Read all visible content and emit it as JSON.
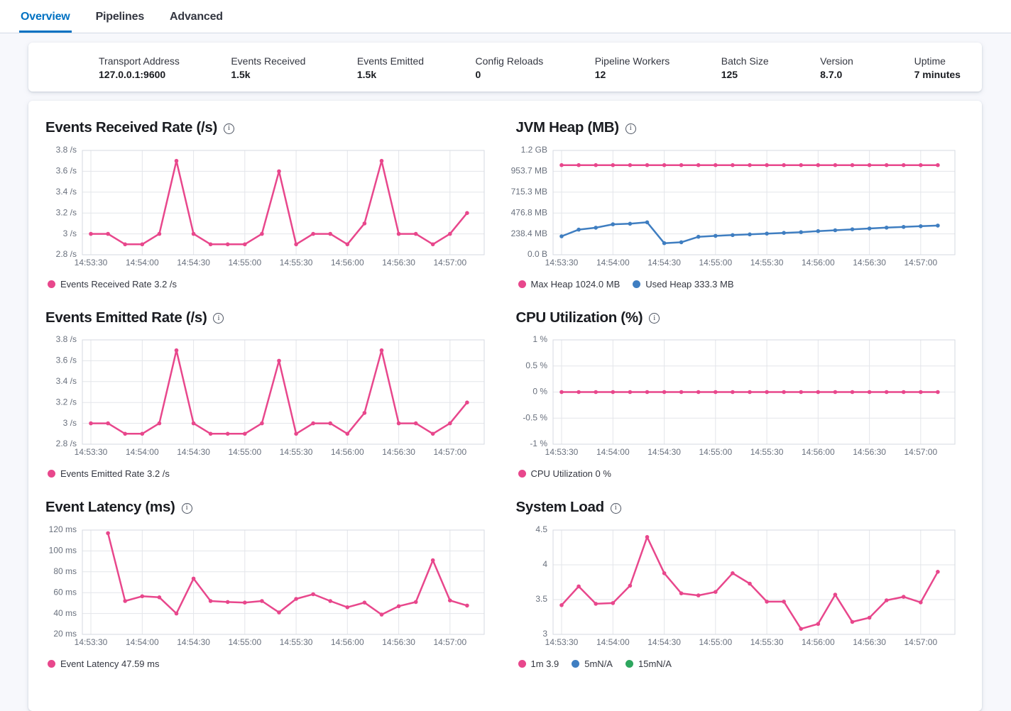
{
  "colors": {
    "pink": "#E8478C",
    "blue": "#3F7EC1",
    "green": "#2DA65E",
    "tab_active": "#0071C2",
    "axis_text": "#69707D",
    "grid": "#E3E5EA",
    "plot_border": "#D6D9E0"
  },
  "icons": {
    "info_glyph": "i"
  },
  "tabs": [
    {
      "label": "Overview",
      "active": true
    },
    {
      "label": "Pipelines",
      "active": false
    },
    {
      "label": "Advanced",
      "active": false
    }
  ],
  "stats": [
    {
      "label": "Transport Address",
      "value": "127.0.0.1:9600"
    },
    {
      "label": "Events Received",
      "value": "1.5k"
    },
    {
      "label": "Events Emitted",
      "value": "1.5k"
    },
    {
      "label": "Config Reloads",
      "value": "0"
    },
    {
      "label": "Pipeline Workers",
      "value": "12"
    },
    {
      "label": "Batch Size",
      "value": "125"
    },
    {
      "label": "Version",
      "value": "8.7.0"
    },
    {
      "label": "Uptime",
      "value": "7 minutes"
    }
  ],
  "x_axis": {
    "start_time": "14:53:30",
    "tick_labels": [
      "14:53:30",
      "14:54:00",
      "14:54:30",
      "14:55:00",
      "14:55:30",
      "14:56:00",
      "14:56:30",
      "14:57:00"
    ],
    "tick_offsets_s": [
      0,
      30,
      60,
      90,
      120,
      150,
      180,
      210
    ],
    "domain_s": [
      -5,
      230
    ]
  },
  "chart_data": [
    {
      "type": "line",
      "title": "Events Received Rate (/s)",
      "ylabel": "",
      "ylim": [
        2.8,
        3.8
      ],
      "y_ticks": [
        {
          "v": 2.8,
          "label": "2.8 /s"
        },
        {
          "v": 3,
          "label": "3 /s"
        },
        {
          "v": 3.2,
          "label": "3.2 /s"
        },
        {
          "v": 3.4,
          "label": "3.4 /s"
        },
        {
          "v": 3.6,
          "label": "3.6 /s"
        },
        {
          "v": 3.8,
          "label": "3.8 /s"
        }
      ],
      "series": [
        {
          "name": "Events Received Rate",
          "color_key": "pink",
          "x_start_s": 0,
          "x_interval_s": 10,
          "values": [
            3,
            3,
            2.9,
            2.9,
            3,
            3.7,
            3,
            2.9,
            2.9,
            2.9,
            3,
            3.6,
            2.9,
            3,
            3,
            2.9,
            3.1,
            3.7,
            3,
            3,
            2.9,
            3,
            3.2
          ]
        }
      ],
      "legend": [
        {
          "color_key": "pink",
          "label": "Events Received Rate 3.2 /s"
        }
      ]
    },
    {
      "type": "line",
      "title": "JVM Heap (MB)",
      "ylabel": "",
      "ylim": [
        0,
        1192.1
      ],
      "y_ticks": [
        {
          "v": 0,
          "label": "0.0 B"
        },
        {
          "v": 238.4,
          "label": "238.4 MB"
        },
        {
          "v": 476.8,
          "label": "476.8 MB"
        },
        {
          "v": 715.3,
          "label": "715.3 MB"
        },
        {
          "v": 953.7,
          "label": "953.7 MB"
        },
        {
          "v": 1192.1,
          "label": "1.2 GB"
        }
      ],
      "series": [
        {
          "name": "Max Heap",
          "color_key": "pink",
          "x_start_s": 0,
          "x_interval_s": 10,
          "values": [
            1024,
            1024,
            1024,
            1024,
            1024,
            1024,
            1024,
            1024,
            1024,
            1024,
            1024,
            1024,
            1024,
            1024,
            1024,
            1024,
            1024,
            1024,
            1024,
            1024,
            1024,
            1024,
            1024
          ]
        },
        {
          "name": "Used Heap",
          "color_key": "blue",
          "x_start_s": 0,
          "x_interval_s": 10,
          "values": [
            211,
            287,
            309,
            348,
            354,
            371,
            132,
            143,
            205,
            216,
            225,
            233,
            242,
            250,
            258,
            270,
            280,
            290,
            300,
            310,
            318,
            326,
            333.3
          ]
        }
      ],
      "legend": [
        {
          "color_key": "pink",
          "label": "Max Heap 1024.0 MB"
        },
        {
          "color_key": "blue",
          "label": "Used Heap 333.3 MB"
        }
      ]
    },
    {
      "type": "line",
      "title": "Events Emitted Rate (/s)",
      "ylabel": "",
      "ylim": [
        2.8,
        3.8
      ],
      "y_ticks": [
        {
          "v": 2.8,
          "label": "2.8 /s"
        },
        {
          "v": 3,
          "label": "3 /s"
        },
        {
          "v": 3.2,
          "label": "3.2 /s"
        },
        {
          "v": 3.4,
          "label": "3.4 /s"
        },
        {
          "v": 3.6,
          "label": "3.6 /s"
        },
        {
          "v": 3.8,
          "label": "3.8 /s"
        }
      ],
      "series": [
        {
          "name": "Events Emitted Rate",
          "color_key": "pink",
          "x_start_s": 0,
          "x_interval_s": 10,
          "values": [
            3,
            3,
            2.9,
            2.9,
            3,
            3.7,
            3,
            2.9,
            2.9,
            2.9,
            3,
            3.6,
            2.9,
            3,
            3,
            2.9,
            3.1,
            3.7,
            3,
            3,
            2.9,
            3,
            3.2
          ]
        }
      ],
      "legend": [
        {
          "color_key": "pink",
          "label": "Events Emitted Rate 3.2 /s"
        }
      ]
    },
    {
      "type": "line",
      "title": "CPU Utilization (%)",
      "ylabel": "",
      "ylim": [
        -1,
        1
      ],
      "y_ticks": [
        {
          "v": -1,
          "label": "-1 %"
        },
        {
          "v": -0.5,
          "label": "-0.5 %"
        },
        {
          "v": 0,
          "label": "0 %"
        },
        {
          "v": 0.5,
          "label": "0.5 %"
        },
        {
          "v": 1,
          "label": "1 %"
        }
      ],
      "series": [
        {
          "name": "CPU Utilization",
          "color_key": "pink",
          "x_start_s": 0,
          "x_interval_s": 10,
          "values": [
            0,
            0,
            0,
            0,
            0,
            0,
            0,
            0,
            0,
            0,
            0,
            0,
            0,
            0,
            0,
            0,
            0,
            0,
            0,
            0,
            0,
            0,
            0
          ]
        }
      ],
      "legend": [
        {
          "color_key": "pink",
          "label": "CPU Utilization 0 %"
        }
      ]
    },
    {
      "type": "line",
      "title": "Event Latency (ms)",
      "ylabel": "",
      "ylim": [
        20,
        120
      ],
      "y_ticks": [
        {
          "v": 20,
          "label": "20 ms"
        },
        {
          "v": 40,
          "label": "40 ms"
        },
        {
          "v": 60,
          "label": "60 ms"
        },
        {
          "v": 80,
          "label": "80 ms"
        },
        {
          "v": 100,
          "label": "100 ms"
        },
        {
          "v": 120,
          "label": "120 ms"
        }
      ],
      "series": [
        {
          "name": "Event Latency",
          "color_key": "pink",
          "x_start_s": 10,
          "x_interval_s": 10,
          "values": [
            117,
            52,
            56.5,
            55.5,
            40,
            73.5,
            52,
            51,
            50.5,
            52,
            41,
            54,
            58.5,
            52,
            46,
            50.5,
            39,
            47,
            51,
            91,
            52.5,
            47.59
          ]
        }
      ],
      "legend": [
        {
          "color_key": "pink",
          "label": "Event Latency 47.59 ms"
        }
      ]
    },
    {
      "type": "line",
      "title": "System Load",
      "ylabel": "",
      "ylim": [
        3,
        4.5
      ],
      "y_ticks": [
        {
          "v": 3,
          "label": "3"
        },
        {
          "v": 3.5,
          "label": "3.5"
        },
        {
          "v": 4,
          "label": "4"
        },
        {
          "v": 4.5,
          "label": "4.5"
        }
      ],
      "series": [
        {
          "name": "1m",
          "color_key": "pink",
          "x_start_s": 0,
          "x_interval_s": 10,
          "values": [
            3.42,
            3.69,
            3.44,
            3.45,
            3.7,
            4.4,
            3.88,
            3.59,
            3.56,
            3.61,
            3.88,
            3.73,
            3.47,
            3.47,
            3.08,
            3.15,
            3.57,
            3.18,
            3.24,
            3.49,
            3.54,
            3.46,
            3.9
          ]
        }
      ],
      "legend": [
        {
          "color_key": "pink",
          "label": "1m 3.9"
        },
        {
          "color_key": "blue",
          "label": "5mN/A"
        },
        {
          "color_key": "green",
          "label": "15mN/A"
        }
      ]
    }
  ]
}
